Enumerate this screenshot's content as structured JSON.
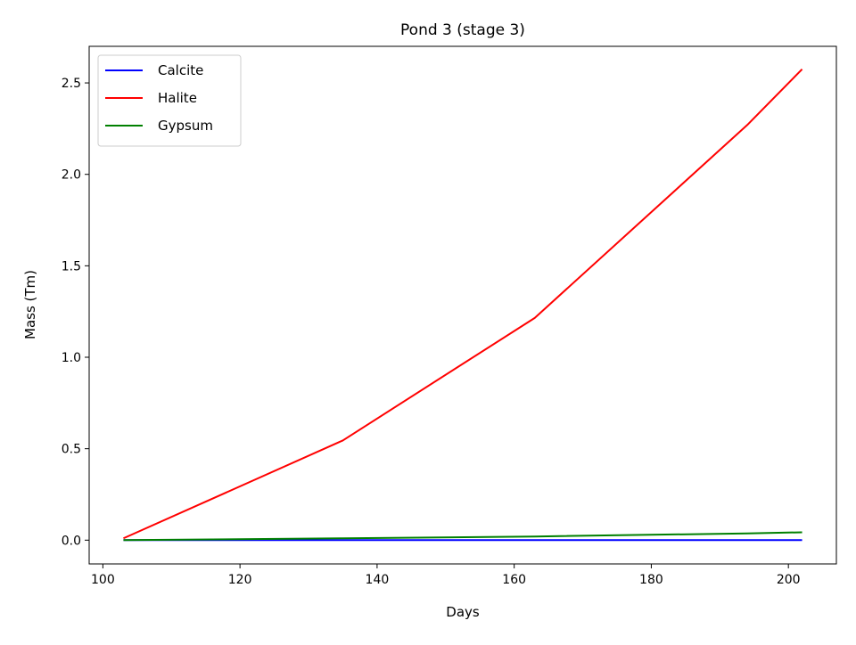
{
  "chart_data": {
    "type": "line",
    "title": "Pond 3 (stage 3)",
    "xlabel": "Days",
    "ylabel": "Mass (Tm)",
    "xlim": [
      98,
      207
    ],
    "ylim": [
      -0.13,
      2.7
    ],
    "x_ticks": [
      100,
      120,
      140,
      160,
      180,
      200
    ],
    "y_ticks": [
      0.0,
      0.5,
      1.0,
      1.5,
      2.0,
      2.5
    ],
    "x_tick_labels": [
      "100",
      "120",
      "140",
      "160",
      "180",
      "200"
    ],
    "y_tick_labels": [
      "0.0",
      "0.5",
      "1.0",
      "1.5",
      "2.0",
      "2.5"
    ],
    "grid": false,
    "legend_position": "top-left",
    "series": [
      {
        "name": "Calcite",
        "color": "#0000ff",
        "x": [
          103,
          135,
          163,
          194,
          202
        ],
        "y": [
          0.0,
          0.0,
          0.0,
          0.0,
          0.0
        ]
      },
      {
        "name": "Halite",
        "color": "#ff0000",
        "x": [
          103,
          135,
          163,
          194,
          202
        ],
        "y": [
          0.01,
          0.545,
          1.215,
          2.27,
          2.575
        ]
      },
      {
        "name": "Gypsum",
        "color": "#008000",
        "x": [
          103,
          135,
          163,
          194,
          202
        ],
        "y": [
          0.0,
          0.01,
          0.02,
          0.037,
          0.043
        ]
      }
    ]
  }
}
